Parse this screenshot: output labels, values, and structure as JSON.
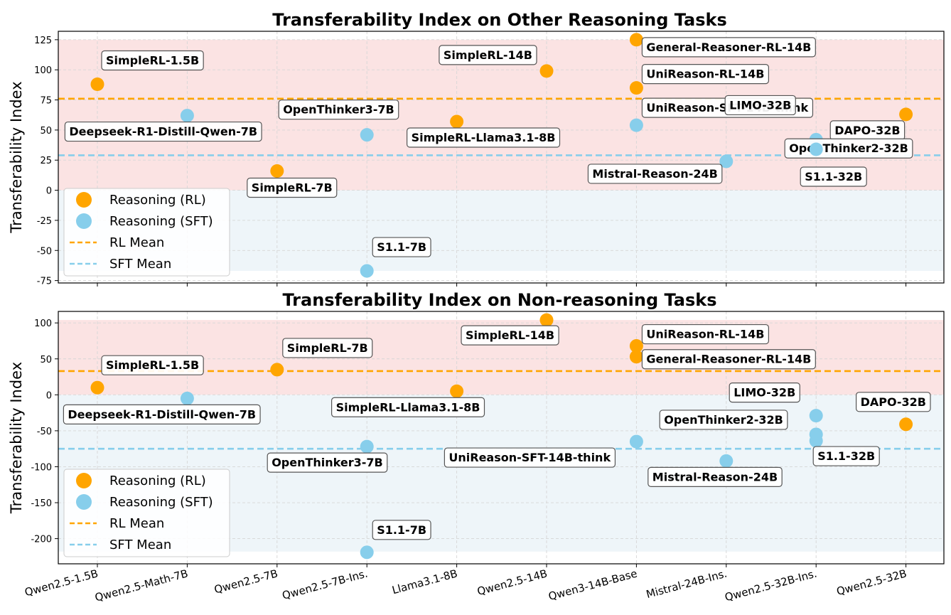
{
  "chart_data": [
    {
      "type": "scatter",
      "title": "Transferability Index on Other Reasoning Tasks",
      "ylabel": "Transferability Index",
      "xlabel": "",
      "categories": [
        "Qwen2.5-1.5B",
        "Qwen2.5-Math-7B",
        "Qwen2.5-7B",
        "Qwen2.5-7B-Ins.",
        "Llama3.1-8B",
        "Qwen2.5-14B",
        "Qwen3-14B-Base",
        "Mistral-24B-Ins.",
        "Qwen2.5-32B-Ins.",
        "Qwen2.5-32B"
      ],
      "ylim": [
        -77,
        132
      ],
      "yticks": [
        -75,
        -50,
        -25,
        0,
        25,
        50,
        75,
        100,
        125
      ],
      "grid": true,
      "legend_position": "lower-left",
      "legend": [
        "Reasoning (RL)",
        "Reasoning (SFT)",
        "RL Mean",
        "SFT Mean"
      ],
      "colors": {
        "rl": "#FFA500",
        "sft": "#87CEEB",
        "pos_band": "#fbe3e3",
        "neg_band": "#eef5f9"
      },
      "bands": {
        "positive_max": 125,
        "negative_min": -67
      },
      "rl_mean": 76,
      "sft_mean": 29,
      "series": [
        {
          "name": "Reasoning (RL)",
          "kind": "rl",
          "points": [
            {
              "x": 0,
              "y": 88,
              "label": "SimpleRL-1.5B"
            },
            {
              "x": 2,
              "y": 16,
              "label": "SimpleRL-7B"
            },
            {
              "x": 4,
              "y": 57,
              "label": "SimpleRL-Llama3.1-8B"
            },
            {
              "x": 5,
              "y": 99,
              "label": "SimpleRL-14B"
            },
            {
              "x": 6,
              "y": 125,
              "label": "General-Reasoner-RL-14B"
            },
            {
              "x": 6,
              "y": 85,
              "label": "UniReason-RL-14B"
            },
            {
              "x": 9,
              "y": 63,
              "label": "DAPO-32B"
            }
          ]
        },
        {
          "name": "Reasoning (SFT)",
          "kind": "sft",
          "points": [
            {
              "x": 1,
              "y": 62,
              "label": "Deepseek-R1-Distill-Qwen-7B"
            },
            {
              "x": 3,
              "y": 46,
              "label": "OpenThinker3-7B"
            },
            {
              "x": 3,
              "y": -67,
              "label": "S1.1-7B"
            },
            {
              "x": 6,
              "y": 54,
              "label": "UniReason-SFT-14B-think"
            },
            {
              "x": 7,
              "y": 24,
              "label": "Mistral-Reason-24B"
            },
            {
              "x": 8,
              "y": 42,
              "label": "LIMO-32B"
            },
            {
              "x": 8,
              "y": 38,
              "label": "OpenThinker2-32B"
            },
            {
              "x": 8,
              "y": 34,
              "label": "S1.1-32B"
            }
          ]
        }
      ]
    },
    {
      "type": "scatter",
      "title": "Transferability Index on Non-reasoning Tasks",
      "ylabel": "Transferability Index",
      "xlabel": "",
      "categories": [
        "Qwen2.5-1.5B",
        "Qwen2.5-Math-7B",
        "Qwen2.5-7B",
        "Qwen2.5-7B-Ins.",
        "Llama3.1-8B",
        "Qwen2.5-14B",
        "Qwen3-14B-Base",
        "Mistral-24B-Ins.",
        "Qwen2.5-32B-Ins.",
        "Qwen2.5-32B"
      ],
      "ylim": [
        -235,
        116
      ],
      "yticks": [
        -200,
        -150,
        -100,
        -50,
        0,
        50,
        100
      ],
      "grid": true,
      "legend_position": "lower-left",
      "legend": [
        "Reasoning (RL)",
        "Reasoning (SFT)",
        "RL Mean",
        "SFT Mean"
      ],
      "colors": {
        "rl": "#FFA500",
        "sft": "#87CEEB",
        "pos_band": "#fbe3e3",
        "neg_band": "#eef5f9"
      },
      "bands": {
        "positive_max": 104,
        "negative_min": -218
      },
      "rl_mean": 33,
      "sft_mean": -75,
      "series": [
        {
          "name": "Reasoning (RL)",
          "kind": "rl",
          "points": [
            {
              "x": 0,
              "y": 10,
              "label": "SimpleRL-1.5B"
            },
            {
              "x": 2,
              "y": 35,
              "label": "SimpleRL-7B"
            },
            {
              "x": 4,
              "y": 5,
              "label": "SimpleRL-Llama3.1-8B"
            },
            {
              "x": 5,
              "y": 104,
              "label": "SimpleRL-14B"
            },
            {
              "x": 6,
              "y": 68,
              "label": "UniReason-RL-14B"
            },
            {
              "x": 6,
              "y": 53,
              "label": "General-Reasoner-RL-14B"
            },
            {
              "x": 9,
              "y": -41,
              "label": "DAPO-32B"
            }
          ]
        },
        {
          "name": "Reasoning (SFT)",
          "kind": "sft",
          "points": [
            {
              "x": 1,
              "y": -5,
              "label": "Deepseek-R1-Distill-Qwen-7B"
            },
            {
              "x": 3,
              "y": -72,
              "label": "OpenThinker3-7B"
            },
            {
              "x": 3,
              "y": -219,
              "label": "S1.1-7B"
            },
            {
              "x": 6,
              "y": -65,
              "label": "UniReason-SFT-14B-think"
            },
            {
              "x": 7,
              "y": -92,
              "label": "Mistral-Reason-24B"
            },
            {
              "x": 8,
              "y": -29,
              "label": "LIMO-32B"
            },
            {
              "x": 8,
              "y": -55,
              "label": "OpenThinker2-32B"
            },
            {
              "x": 8,
              "y": -64,
              "label": "S1.1-32B"
            }
          ]
        }
      ]
    }
  ]
}
